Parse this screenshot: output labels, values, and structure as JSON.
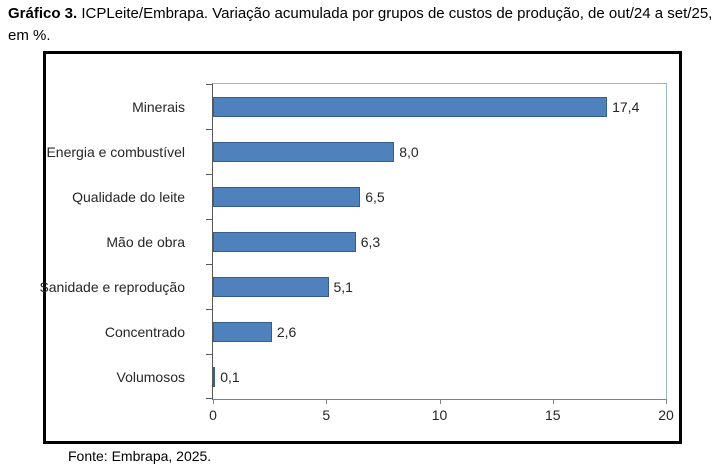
{
  "caption": {
    "label": "Gráfico 3.",
    "text": " ICPLeite/Embrapa. Variação acumulada por grupos de custos de produção, de out/24 a set/25, em %."
  },
  "source": "Fonte: Embrapa, 2025.",
  "colors": {
    "bar_fill": "#4f81bd",
    "bar_border": "#385d8a",
    "plot_border": "#95b3d7",
    "category_axis_line": "#595959",
    "value_axis_line": "#808080",
    "frame_border": "#000000",
    "text": "#262626"
  },
  "chart_data": {
    "type": "bar",
    "orientation": "horizontal",
    "title": "ICPLeite/Embrapa. Variação acumulada por grupos de custos de produção, de out/24 a set/25, em %",
    "categories": [
      "Minerais",
      "Energia e combustível",
      "Qualidade do leite",
      "Mão de obra",
      "Sanidade e reprodução",
      "Concentrado",
      "Volumosos"
    ],
    "values": [
      17.4,
      8.0,
      6.5,
      6.3,
      5.1,
      2.6,
      0.1
    ],
    "value_labels": [
      "17,4",
      "8,0",
      "6,5",
      "6,3",
      "5,1",
      "2,6",
      "0,1"
    ],
    "xlabel": "",
    "ylabel": "",
    "xlim": [
      0,
      20
    ],
    "x_ticks": [
      0,
      5,
      10,
      15,
      20
    ],
    "x_tick_labels": [
      "0",
      "5",
      "10",
      "15",
      "20"
    ],
    "grid": false,
    "legend": false
  }
}
